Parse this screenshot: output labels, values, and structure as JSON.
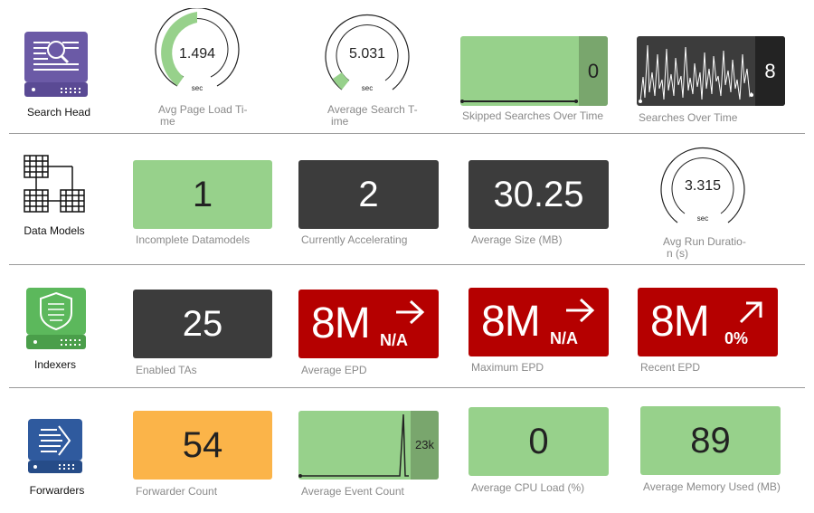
{
  "rows": {
    "search_head": {
      "label": "Search Head"
    },
    "data_models": {
      "label": "Data Models"
    },
    "indexers": {
      "label": "Indexers"
    },
    "forwarders": {
      "label": "Forwarders"
    }
  },
  "search_head": {
    "avg_page_load": {
      "value": "1.494",
      "unit": "sec",
      "caption_l1": "Avg Page Load Ti-",
      "caption_l2": "me",
      "fill_fraction": 0.5
    },
    "avg_search_time": {
      "value": "5.031",
      "unit": "sec",
      "caption_l1": "Average Search T-",
      "caption_l2": "ime",
      "fill_fraction": 0.08
    },
    "skipped_searches": {
      "value": "0",
      "caption": "Skipped Searches Over Time"
    },
    "searches_over_time": {
      "value": "8",
      "caption": "Searches Over Time"
    }
  },
  "data_models": {
    "incomplete": {
      "value": "1",
      "caption": "Incomplete Datamodels"
    },
    "accelerating": {
      "value": "2",
      "caption": "Currently Accelerating"
    },
    "avg_size": {
      "value": "30.25",
      "caption": "Average Size (MB)"
    },
    "avg_run_duration": {
      "value": "3.315",
      "unit": "sec",
      "caption_l1": "Avg Run Duratio-",
      "caption_l2": "n (s)",
      "fill_fraction": 0.0
    }
  },
  "indexers": {
    "enabled_tas": {
      "value": "25",
      "caption": "Enabled TAs"
    },
    "average_epd": {
      "value": "8M",
      "trend": "N/A",
      "trend_icon": "arrow-right-icon",
      "caption": "Average EPD"
    },
    "maximum_epd": {
      "value": "8M",
      "trend": "N/A",
      "trend_icon": "arrow-right-icon",
      "caption": "Maximum EPD"
    },
    "recent_epd": {
      "value": "8M",
      "trend": "0%",
      "trend_icon": "arrow-up-right-icon",
      "caption": "Recent EPD"
    }
  },
  "forwarders": {
    "forwarder_count": {
      "value": "54",
      "caption": "Forwarder Count"
    },
    "avg_event_count": {
      "value": "23k",
      "caption": "Average Event Count"
    },
    "avg_cpu_load": {
      "value": "0",
      "caption": "Average CPU Load (%)"
    },
    "avg_memory_used": {
      "value": "89",
      "caption": "Average Memory Used (MB)"
    }
  },
  "colors": {
    "green": "#97d18b",
    "dark": "#3c3c3c",
    "red": "#b50000",
    "orange": "#fbb449",
    "purple": "#6b5aa6",
    "indexer_green": "#5cb85c",
    "forwarder_blue": "#2f5a9e"
  }
}
